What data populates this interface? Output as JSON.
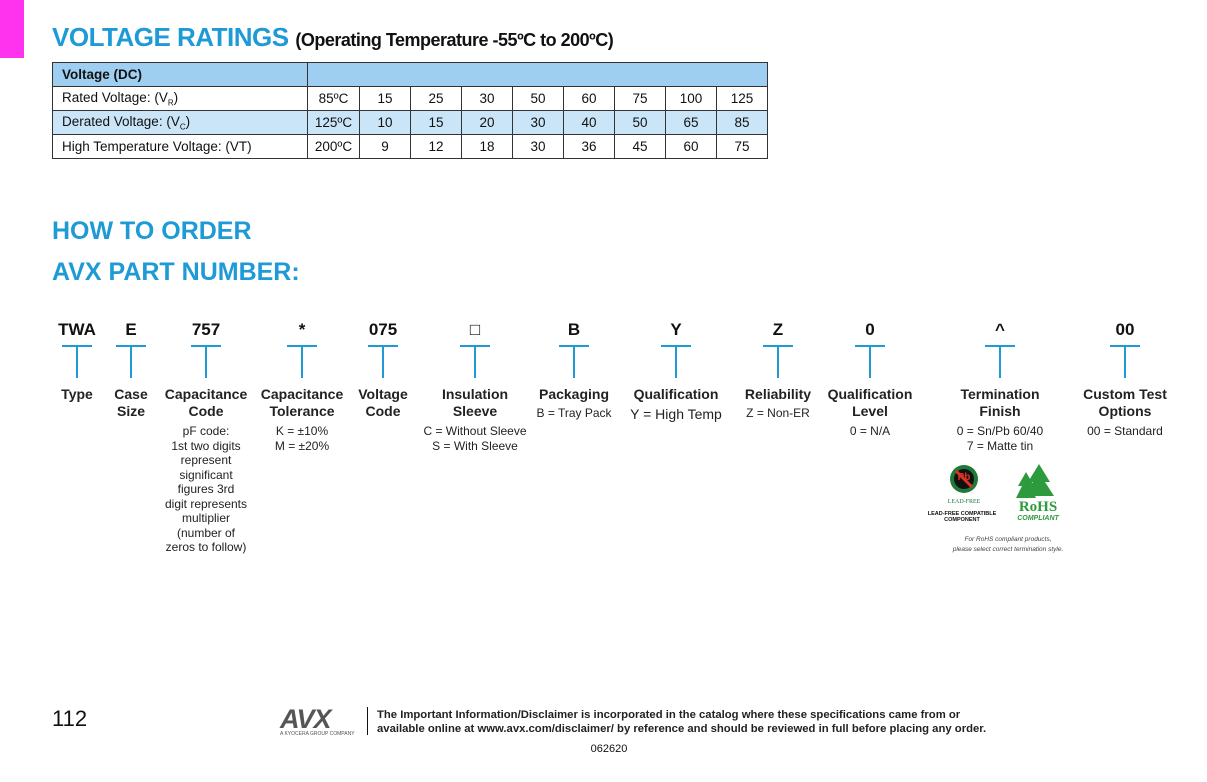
{
  "header": {
    "title": "VOLTAGE RATINGS",
    "subtitle": "(Operating Temperature -55ºC to 200ºC)"
  },
  "table": {
    "header": "Voltage (DC)",
    "rows": [
      {
        "label": "Rated Voltage: (V",
        "sub": "R",
        "end": ")",
        "temp": "85ºC",
        "values": [
          "15",
          "25",
          "30",
          "50",
          "60",
          "75",
          "100",
          "125"
        ]
      },
      {
        "label": "Derated Voltage: (V",
        "sub": "C",
        "end": ")",
        "temp": "125ºC",
        "values": [
          "10",
          "15",
          "20",
          "30",
          "40",
          "50",
          "65",
          "85"
        ]
      },
      {
        "label": "High Temperature Voltage: (VT)",
        "temp": "200ºC",
        "values": [
          "9",
          "12",
          "18",
          "30",
          "36",
          "45",
          "60",
          "75"
        ]
      }
    ]
  },
  "order": {
    "heading": "HOW TO ORDER",
    "subheading": "AVX PART NUMBER:",
    "fields": [
      {
        "code": "TWA",
        "name": [
          "Type"
        ],
        "desc": []
      },
      {
        "code": "E",
        "name": [
          "Case",
          "Size"
        ],
        "desc": []
      },
      {
        "code": "757",
        "name": [
          "Capacitance",
          "Code"
        ],
        "desc": [
          "pF code:",
          "1st two digits",
          "represent",
          "significant",
          "figures 3rd",
          "digit represents",
          "multiplier",
          "(number of",
          "zeros to follow)"
        ]
      },
      {
        "code": "*",
        "name": [
          "Capacitance",
          "Tolerance"
        ],
        "desc": [
          "K = ±10%",
          "M = ±20%"
        ]
      },
      {
        "code": "075",
        "name": [
          "Voltage",
          "Code"
        ],
        "desc": []
      },
      {
        "code": "□",
        "name": [
          "Insulation",
          "Sleeve"
        ],
        "desc": [
          "C = Without Sleeve",
          "S = With Sleeve"
        ]
      },
      {
        "code": "B",
        "name": [
          "Packaging"
        ],
        "desc": [
          "B = Tray Pack"
        ]
      },
      {
        "code": "Y",
        "name": [
          "Qualification"
        ],
        "desc": [
          "Y = High Temp"
        ]
      },
      {
        "code": "Z",
        "name": [
          "Reliability"
        ],
        "desc": [
          "Z = Non-ER"
        ]
      },
      {
        "code": "0",
        "name": [
          "Qualification",
          "Level"
        ],
        "desc": [
          "0 = N/A"
        ]
      },
      {
        "code": "^",
        "name": [
          "Termination",
          "Finish"
        ],
        "desc": [
          "0 = Sn/Pb 60/40",
          "7 = Matte tin"
        ]
      },
      {
        "code": "00",
        "name": [
          "Custom Test",
          "Options"
        ],
        "desc": [
          "00 = Standard"
        ]
      }
    ],
    "badges": {
      "pb": "Pb",
      "leadfree": "LEAD-FREE",
      "compatible": [
        "LEAD-FREE COMPATIBLE",
        "COMPONENT"
      ],
      "rohs": "RoHS",
      "compliant": "COMPLIANT",
      "note": [
        "For RoHS compliant products,",
        "please select correct termination style."
      ]
    }
  },
  "footer": {
    "page": "112",
    "logo": "AVX",
    "tagline": "A KYOCERA GROUP COMPANY",
    "disclaimer": [
      "The Important Information/Disclaimer is incorporated in the catalog where these specifications came from or",
      "available online at www.avx.com/disclaimer/ by reference and should be reviewed in full before placing any order."
    ],
    "code": "062620"
  }
}
